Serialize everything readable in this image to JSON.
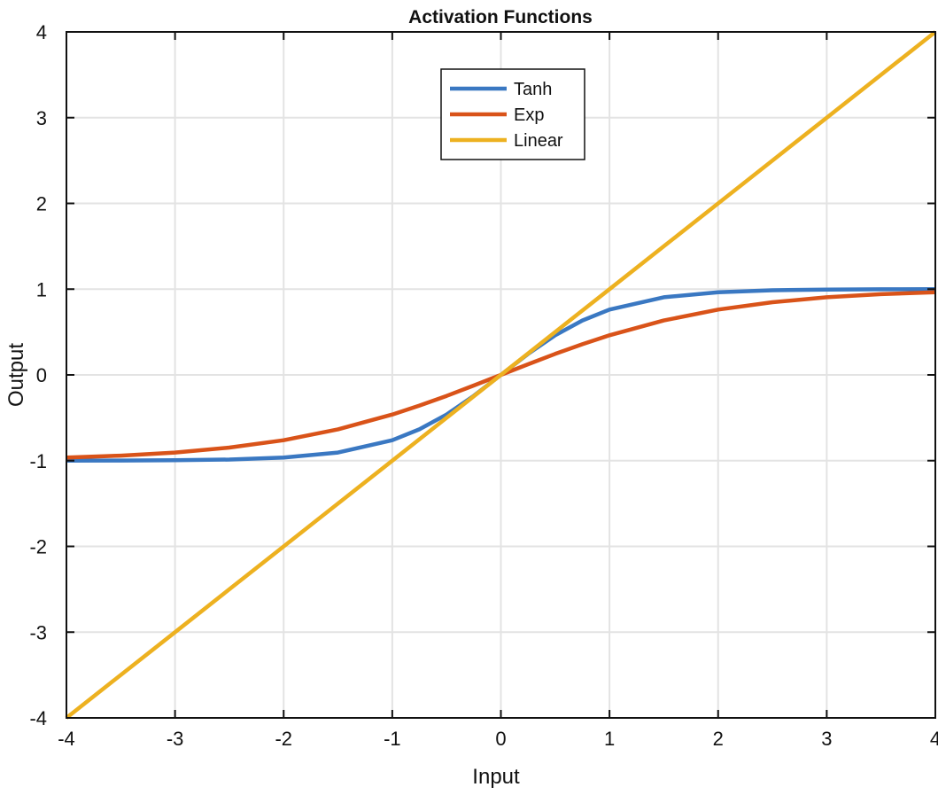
{
  "chart_data": {
    "type": "line",
    "title": "Activation Functions",
    "xlabel": "Input",
    "ylabel": "Output",
    "xlim": [
      -4,
      4
    ],
    "ylim": [
      -4,
      4
    ],
    "xticks": [
      "-4",
      "-3",
      "-2",
      "-1",
      "0",
      "1",
      "2",
      "3",
      "4"
    ],
    "yticks": [
      "-4",
      "-3",
      "-2",
      "-1",
      "0",
      "1",
      "2",
      "3",
      "4"
    ],
    "grid": true,
    "legend_position": "top-center",
    "x": [
      -4,
      -3.5,
      -3,
      -2.5,
      -2,
      -1.5,
      -1,
      -0.75,
      -0.5,
      -0.25,
      0,
      0.25,
      0.5,
      0.75,
      1,
      1.5,
      2,
      2.5,
      3,
      3.5,
      4
    ],
    "series": [
      {
        "name": "Tanh",
        "color": "#3a78c2",
        "values": [
          -0.999,
          -0.998,
          -0.995,
          -0.987,
          -0.964,
          -0.905,
          -0.762,
          -0.635,
          -0.462,
          -0.245,
          0,
          0.245,
          0.462,
          0.635,
          0.762,
          0.905,
          0.964,
          0.987,
          0.995,
          0.998,
          0.999
        ]
      },
      {
        "name": "Exp",
        "color": "#d95319",
        "values": [
          -0.964,
          -0.942,
          -0.905,
          -0.848,
          -0.762,
          -0.635,
          -0.462,
          -0.358,
          -0.245,
          -0.124,
          0,
          0.124,
          0.245,
          0.358,
          0.462,
          0.635,
          0.762,
          0.848,
          0.905,
          0.942,
          0.964
        ]
      },
      {
        "name": "Linear",
        "color": "#edb120",
        "values": [
          -4,
          -3.5,
          -3,
          -2.5,
          -2,
          -1.5,
          -1,
          -0.75,
          -0.5,
          -0.25,
          0,
          0.25,
          0.5,
          0.75,
          1,
          1.5,
          2,
          2.5,
          3,
          3.5,
          4
        ]
      }
    ]
  }
}
